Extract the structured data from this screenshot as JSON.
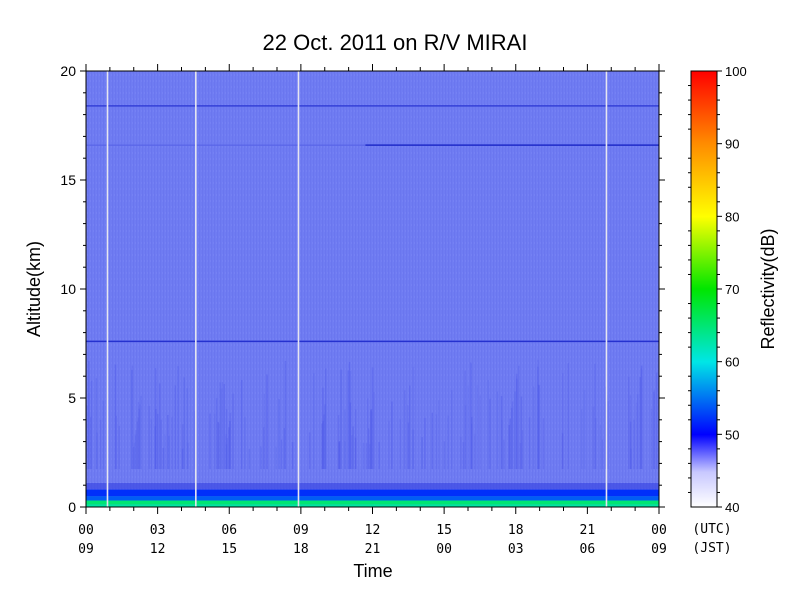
{
  "chart_data": {
    "type": "heatmap",
    "title": "22 Oct. 2011  on R/V MIRAI",
    "xlabel": "Time",
    "ylabel": "Altitude(km)",
    "ylim": [
      0,
      20
    ],
    "yticks": [
      "0",
      "5",
      "10",
      "15",
      "20"
    ],
    "x_range_hours_utc": [
      0,
      24
    ],
    "xticks_utc": [
      "00",
      "03",
      "06",
      "09",
      "12",
      "15",
      "18",
      "21",
      "00"
    ],
    "xticks_jst": [
      "09",
      "12",
      "15",
      "18",
      "21",
      "00",
      "03",
      "06",
      "09"
    ],
    "time_zone_labels": [
      "(UTC)",
      "(JST)"
    ],
    "colorbar": {
      "label": "Reflectivity(dB)",
      "range": [
        40,
        100
      ],
      "ticks": [
        "40",
        "50",
        "60",
        "70",
        "80",
        "90",
        "100"
      ]
    },
    "background_reflectivity_db": 47,
    "surface_layer": {
      "altitude_km": [
        0,
        0.8
      ],
      "reflectivity_db": [
        52,
        65
      ]
    },
    "data_gaps_utc_hours": [
      0.9,
      4.6,
      8.9,
      21.8
    ],
    "horizontal_artifacts_km": [
      18.4,
      16.6,
      7.6
    ]
  }
}
